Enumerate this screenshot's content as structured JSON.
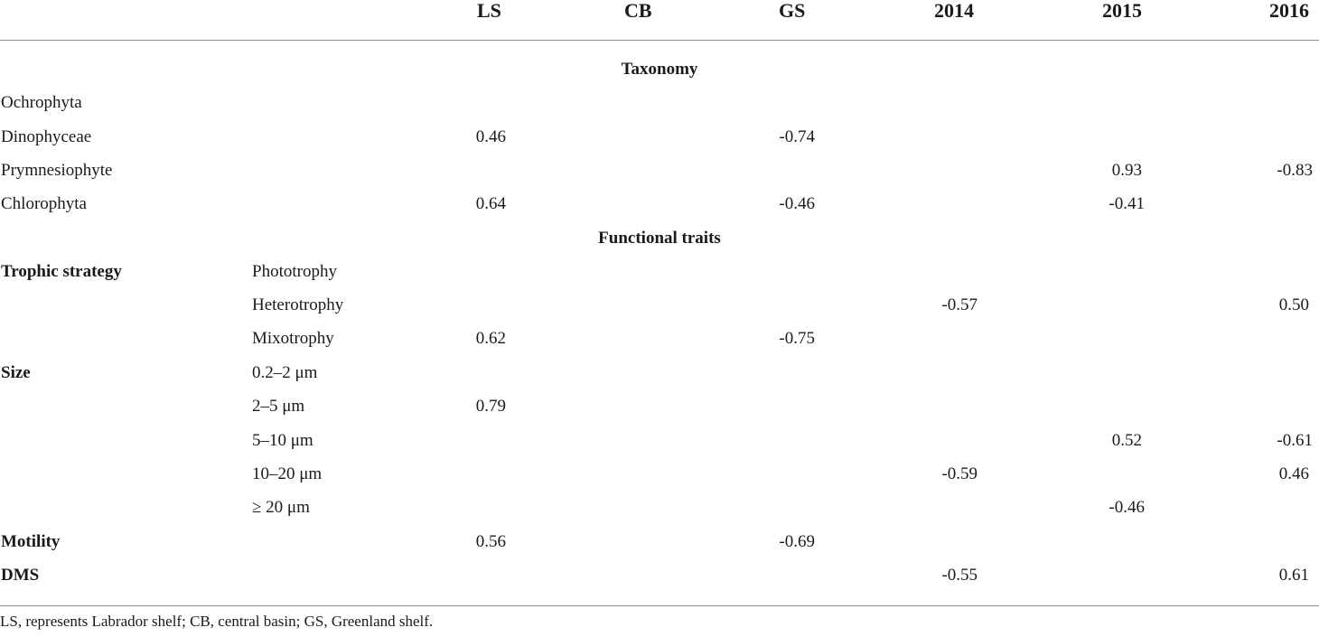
{
  "header": {
    "columns": [
      "LS",
      "CB",
      "GS",
      "2014",
      "2015",
      "2016"
    ]
  },
  "sections": {
    "taxonomy": "Taxonomy",
    "functional": "Functional traits"
  },
  "taxonomy_rows": [
    {
      "label": "Ochrophyta",
      "ls": "",
      "gs": "",
      "y2014": "",
      "y2015": "",
      "y2016": ""
    },
    {
      "label": "Dinophyceae",
      "ls": "0.46",
      "gs": "-0.74",
      "y2014": "",
      "y2015": "",
      "y2016": ""
    },
    {
      "label": "Prymnesiophyte",
      "ls": "",
      "gs": "",
      "y2014": "",
      "y2015": "0.93",
      "y2016": "-0.83"
    },
    {
      "label": "Chlorophyta",
      "ls": "0.64",
      "gs": "-0.46",
      "y2014": "",
      "y2015": "-0.41",
      "y2016": ""
    }
  ],
  "trait_rows": [
    {
      "group": "Trophic strategy",
      "label": "Phototrophy",
      "ls": "",
      "gs": "",
      "y2014": "",
      "y2015": "",
      "y2016": ""
    },
    {
      "group": "",
      "label": "Heterotrophy",
      "ls": "",
      "gs": "",
      "y2014": "-0.57",
      "y2015": "",
      "y2016": "0.50"
    },
    {
      "group": "",
      "label": "Mixotrophy",
      "ls": "0.62",
      "gs": "-0.75",
      "y2014": "",
      "y2015": "",
      "y2016": ""
    },
    {
      "group": "Size",
      "label": "0.2–2 μm",
      "ls": "",
      "gs": "",
      "y2014": "",
      "y2015": "",
      "y2016": ""
    },
    {
      "group": "",
      "label": "2–5 μm",
      "ls": "0.79",
      "gs": "",
      "y2014": "",
      "y2015": "",
      "y2016": ""
    },
    {
      "group": "",
      "label": "5–10 μm",
      "ls": "",
      "gs": "",
      "y2014": "",
      "y2015": "0.52",
      "y2016": "-0.61"
    },
    {
      "group": "",
      "label": "10–20 μm",
      "ls": "",
      "gs": "",
      "y2014": "-0.59",
      "y2015": "",
      "y2016": "0.46"
    },
    {
      "group": "",
      "label": "≥ 20 μm",
      "ls": "",
      "gs": "",
      "y2014": "",
      "y2015": "-0.46",
      "y2016": ""
    },
    {
      "group": "Motility",
      "label": "",
      "ls": "0.56",
      "gs": "-0.69",
      "y2014": "",
      "y2015": "",
      "y2016": ""
    },
    {
      "group": "DMS",
      "label": "",
      "ls": "",
      "gs": "",
      "y2014": "-0.55",
      "y2015": "",
      "y2016": "0.61"
    }
  ],
  "footnote": "LS, represents Labrador shelf; CB, central basin; GS, Greenland shelf."
}
